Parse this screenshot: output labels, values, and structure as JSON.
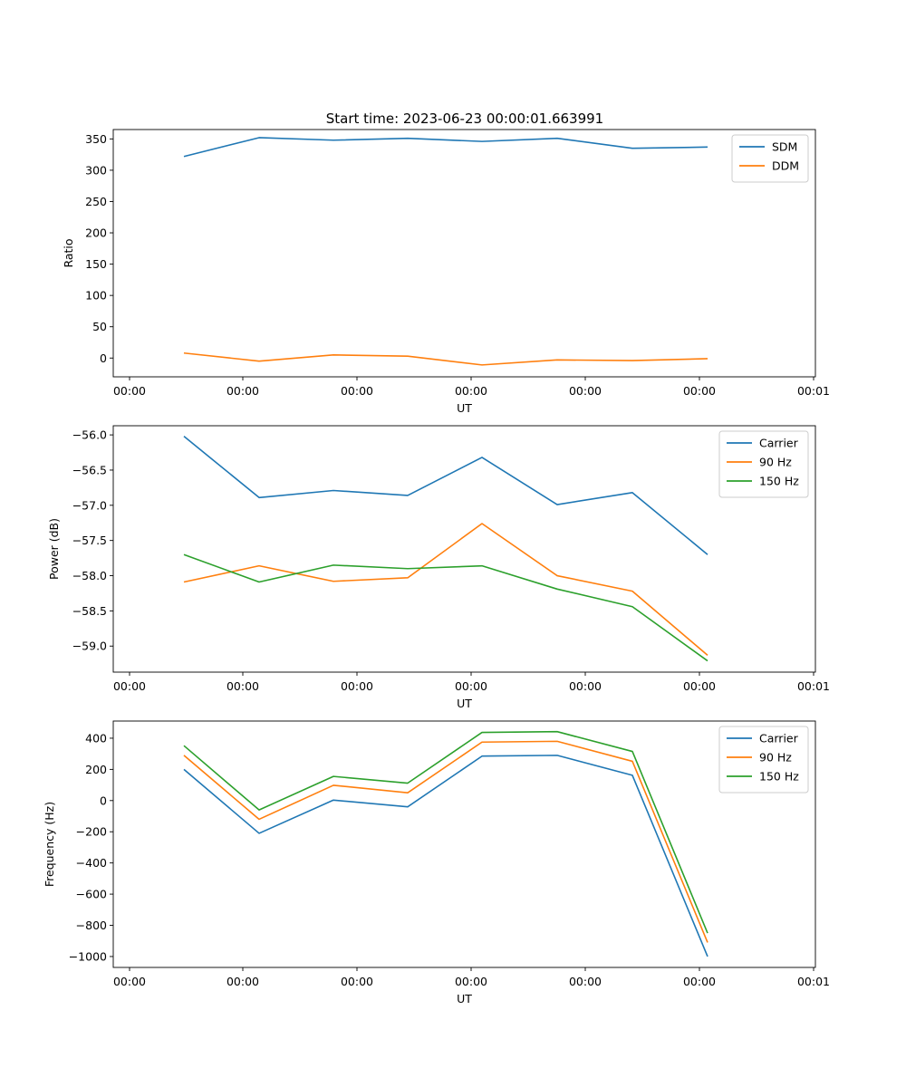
{
  "figure": {
    "title": "Start time: 2023-06-23 00:00:01.663991"
  },
  "chart_data": [
    {
      "type": "line",
      "xlabel": "UT",
      "ylabel": "Ratio",
      "x_tick_labels": [
        "00:00",
        "00:00",
        "00:00",
        "00:00",
        "00:00",
        "00:00",
        "00:00",
        "00:01"
      ],
      "y_ticks": [
        0,
        50,
        100,
        150,
        200,
        250,
        300,
        350
      ],
      "ylim": [
        -30,
        365
      ],
      "legend_position": "top-right",
      "series": [
        {
          "name": "SDM",
          "color": "#1f77b4",
          "values": [
            322,
            352,
            348,
            351,
            346,
            351,
            335,
            337
          ]
        },
        {
          "name": "DDM",
          "color": "#ff7f0e",
          "values": [
            8,
            -5,
            5,
            3,
            -11,
            -3,
            -4,
            -1
          ]
        }
      ]
    },
    {
      "type": "line",
      "xlabel": "UT",
      "ylabel": "Power (dB)",
      "x_tick_labels": [
        "00:00",
        "00:00",
        "00:00",
        "00:00",
        "00:00",
        "00:00",
        "00:00",
        "00:01"
      ],
      "y_ticks": [
        -59.0,
        -58.5,
        -58.0,
        -57.5,
        -57.0,
        -56.5,
        -56.0
      ],
      "y_tick_labels": [
        "−59.0",
        "−58.5",
        "−58.0",
        "−57.5",
        "−57.0",
        "−56.5",
        "−56.0"
      ],
      "ylim": [
        -59.37,
        -55.87
      ],
      "legend_position": "top-right",
      "series": [
        {
          "name": "Carrier",
          "color": "#1f77b4",
          "values": [
            -56.02,
            -56.89,
            -56.79,
            -56.86,
            -56.32,
            -56.99,
            -56.82,
            -57.7
          ]
        },
        {
          "name": "90 Hz",
          "color": "#ff7f0e",
          "values": [
            -58.09,
            -57.86,
            -58.08,
            -58.03,
            -57.26,
            -58.0,
            -58.22,
            -59.13
          ]
        },
        {
          "name": "150 Hz",
          "color": "#2ca02c",
          "values": [
            -57.7,
            -58.09,
            -57.85,
            -57.9,
            -57.86,
            -58.19,
            -58.44,
            -59.21
          ]
        }
      ]
    },
    {
      "type": "line",
      "xlabel": "UT",
      "ylabel": "Frequency (Hz)",
      "x_tick_labels": [
        "00:00",
        "00:00",
        "00:00",
        "00:00",
        "00:00",
        "00:00",
        "00:00",
        "00:01"
      ],
      "y_ticks": [
        -1000,
        -800,
        -600,
        -400,
        -200,
        0,
        200,
        400
      ],
      "y_tick_labels": [
        "−1000",
        "−800",
        "−600",
        "−400",
        "−200",
        "0",
        "200",
        "400"
      ],
      "ylim": [
        -1070,
        510
      ],
      "legend_position": "top-right",
      "series": [
        {
          "name": "Carrier",
          "color": "#1f77b4",
          "values": [
            200,
            -210,
            3,
            -40,
            285,
            290,
            162,
            -1000
          ]
        },
        {
          "name": "90 Hz",
          "color": "#ff7f0e",
          "values": [
            290,
            -120,
            98,
            50,
            375,
            380,
            252,
            -910
          ]
        },
        {
          "name": "150 Hz",
          "color": "#2ca02c",
          "values": [
            352,
            -60,
            155,
            112,
            437,
            442,
            315,
            -850
          ]
        }
      ]
    }
  ]
}
